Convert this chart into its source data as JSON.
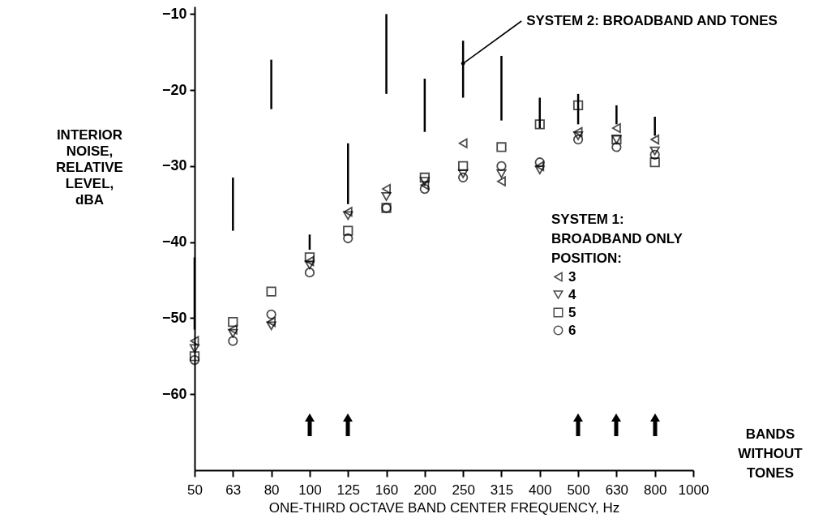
{
  "chart_data": {
    "type": "scatter",
    "xlabel": "ONE-THIRD OCTAVE BAND CENTER FREQUENCY, Hz",
    "ylabel": "INTERIOR NOISE, RELATIVE LEVEL, dBA",
    "legend_title": "SYSTEM 1:\nBROADBAND ONLY\nPOSITION:",
    "categories": [
      "50",
      "63",
      "80",
      "100",
      "125",
      "160",
      "200",
      "250",
      "315",
      "400",
      "500",
      "630",
      "800",
      "1000"
    ],
    "ylim": [
      -70,
      -9
    ],
    "yticks": [
      -60,
      -50,
      -40,
      -30,
      -20,
      -10
    ],
    "grid": false,
    "legend": "right",
    "series": [
      {
        "name": "3",
        "marker": "triangle-left",
        "color": "#000000",
        "values": [
          -53,
          -51.5,
          -50.5,
          -42.5,
          -36,
          -33,
          -32.5,
          -27,
          -32,
          -30,
          -25.5,
          -25,
          -26.5,
          null
        ]
      },
      {
        "name": "4",
        "marker": "triangle-down",
        "color": "#000000",
        "values": [
          -54,
          -52,
          -51,
          -43,
          -36.5,
          -34,
          -32,
          -31,
          -31,
          -30.5,
          -26,
          -26.5,
          -28,
          null
        ]
      },
      {
        "name": "5",
        "marker": "square",
        "color": "#000000",
        "values": [
          -55,
          -50.5,
          -46.5,
          -42,
          -38.5,
          -35.5,
          -31.5,
          -30,
          -27.5,
          -24.5,
          -22,
          -26.5,
          -29.5,
          null
        ]
      },
      {
        "name": "6",
        "marker": "circle",
        "color": "#000000",
        "values": [
          -55.5,
          -53,
          -49.5,
          -44,
          -39.5,
          -35.5,
          -33,
          -31.5,
          -30,
          -29.5,
          -26.5,
          -27.5,
          -28.5,
          null
        ]
      },
      {
        "type": "bar",
        "color": "#000000",
        "base": [
          -51.5,
          -38.5,
          -22.5,
          -41,
          -35,
          -20.5,
          -25.5,
          -21,
          -24,
          -25,
          -24.5,
          -24.5,
          -26,
          null
        ],
        "values": [
          9.5,
          7,
          6.5,
          2,
          8,
          10.5,
          7,
          7.5,
          8.5,
          4,
          4,
          2.5,
          2.5,
          null
        ]
      }
    ],
    "annotations": [
      {
        "text": "SYSTEM 2: BROADBAND AND TONES",
        "x": "250",
        "y": -16.5
      },
      "BANDS WITHOUT TONES"
    ]
  }
}
